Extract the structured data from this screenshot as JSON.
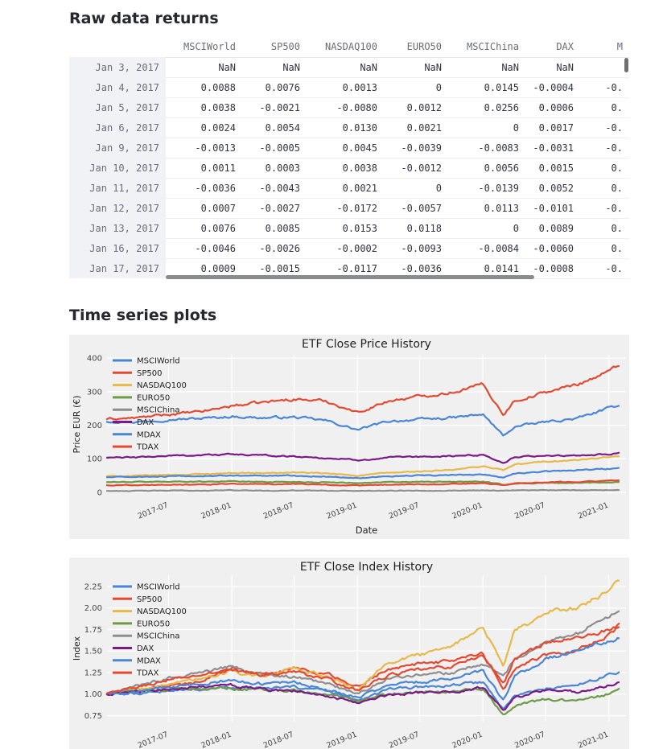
{
  "sections": {
    "raw_title": "Raw data returns",
    "plots_title": "Time series plots"
  },
  "table": {
    "columns": [
      "MSCIWorld",
      "SP500",
      "NASDAQ100",
      "EURO50",
      "MSCIChina",
      "DAX",
      "M"
    ],
    "rows": [
      {
        "date": "Jan 3, 2017",
        "values": [
          "NaN",
          "NaN",
          "NaN",
          "NaN",
          "NaN",
          "NaN",
          ""
        ]
      },
      {
        "date": "Jan 4, 2017",
        "values": [
          "0.0088",
          "0.0076",
          "0.0013",
          "0",
          "0.0145",
          "-0.0004",
          "-0."
        ]
      },
      {
        "date": "Jan 5, 2017",
        "values": [
          "0.0038",
          "-0.0021",
          "-0.0080",
          "0.0012",
          "0.0256",
          "0.0006",
          "0."
        ]
      },
      {
        "date": "Jan 6, 2017",
        "values": [
          "0.0024",
          "0.0054",
          "0.0130",
          "0.0021",
          "0",
          "0.0017",
          "-0."
        ]
      },
      {
        "date": "Jan 9, 2017",
        "values": [
          "-0.0013",
          "-0.0005",
          "0.0045",
          "-0.0039",
          "-0.0083",
          "-0.0031",
          "-0."
        ]
      },
      {
        "date": "Jan 10, 2017",
        "values": [
          "0.0011",
          "0.0003",
          "0.0038",
          "-0.0012",
          "0.0056",
          "0.0015",
          "0."
        ]
      },
      {
        "date": "Jan 11, 2017",
        "values": [
          "-0.0036",
          "-0.0043",
          "0.0021",
          "0",
          "-0.0139",
          "0.0052",
          "0."
        ]
      },
      {
        "date": "Jan 12, 2017",
        "values": [
          "0.0007",
          "-0.0027",
          "-0.0172",
          "-0.0057",
          "0.0113",
          "-0.0101",
          "-0."
        ]
      },
      {
        "date": "Jan 13, 2017",
        "values": [
          "0.0076",
          "0.0085",
          "0.0153",
          "0.0118",
          "0",
          "0.0089",
          "0."
        ]
      },
      {
        "date": "Jan 16, 2017",
        "values": [
          "-0.0046",
          "-0.0026",
          "-0.0002",
          "-0.0093",
          "-0.0084",
          "-0.0060",
          "0."
        ]
      },
      {
        "date": "Jan 17, 2017",
        "values": [
          "0.0009",
          "-0.0015",
          "-0.0117",
          "-0.0036",
          "0.0141",
          "-0.0008",
          "-0."
        ]
      }
    ]
  },
  "chart_data": [
    {
      "type": "line",
      "title": "ETF Close Price History",
      "xlabel": "Date",
      "ylabel": "Price EUR (€)",
      "x_ticks": [
        "2017-07",
        "2018-01",
        "2018-07",
        "2019-01",
        "2019-07",
        "2020-01",
        "2020-07",
        "2021-01"
      ],
      "y_ticks": [
        0,
        100,
        200,
        300,
        400
      ],
      "ylim": [
        -5,
        410
      ],
      "xlim": [
        "2017-01-03",
        "2021-02-20"
      ],
      "grid": true,
      "legend": "top-left",
      "x": [
        "2017-01",
        "2017-04",
        "2017-07",
        "2017-10",
        "2018-01",
        "2018-04",
        "2018-07",
        "2018-10",
        "2019-01",
        "2019-04",
        "2019-07",
        "2019-10",
        "2020-01",
        "2020-03",
        "2020-04",
        "2020-07",
        "2020-10",
        "2021-01",
        "2021-02"
      ],
      "series": [
        {
          "name": "MSCIWorld",
          "color": "#4a86d4",
          "values": [
            212,
            210,
            217,
            220,
            226,
            222,
            224,
            214,
            186,
            212,
            217,
            222,
            232,
            168,
            195,
            210,
            220,
            250,
            262
          ]
        },
        {
          "name": "SP500",
          "color": "#e24a33",
          "values": [
            218,
            222,
            232,
            240,
            258,
            268,
            278,
            272,
            238,
            272,
            286,
            298,
            322,
            232,
            272,
            298,
            322,
            360,
            382
          ]
        },
        {
          "name": "NASDAQ100",
          "color": "#e8b94a",
          "values": [
            48,
            49,
            52,
            54,
            58,
            57,
            59,
            56,
            50,
            58,
            62,
            66,
            78,
            66,
            82,
            92,
            96,
            104,
            106
          ]
        },
        {
          "name": "EURO50",
          "color": "#6e9b47",
          "values": [
            30,
            31,
            32,
            32,
            33,
            31,
            31,
            30,
            28,
            30,
            31,
            31,
            32,
            22,
            26,
            28,
            28,
            30,
            31
          ]
        },
        {
          "name": "MSCIChina",
          "color": "#8e8e8e",
          "values": [
            4,
            4,
            5,
            5,
            6,
            5,
            5,
            5,
            4,
            5,
            5,
            5,
            6,
            5,
            6,
            6,
            6,
            7,
            7
          ]
        },
        {
          "name": "DAX",
          "color": "#7b1a87",
          "values": [
            103,
            104,
            109,
            111,
            113,
            110,
            107,
            102,
            96,
            103,
            105,
            108,
            112,
            88,
            104,
            110,
            108,
            114,
            116
          ]
        },
        {
          "name": "MDAX",
          "color": "#4a86d4",
          "values": [
            45,
            46,
            47,
            48,
            50,
            49,
            50,
            47,
            43,
            48,
            50,
            51,
            54,
            44,
            55,
            62,
            66,
            70,
            72
          ]
        },
        {
          "name": "TDAX",
          "color": "#e24a33",
          "values": [
            21,
            22,
            23,
            24,
            25,
            24,
            25,
            23,
            20,
            23,
            24,
            25,
            27,
            22,
            27,
            30,
            32,
            34,
            35
          ]
        }
      ]
    },
    {
      "type": "line",
      "title": "ETF Close Index History",
      "xlabel": "",
      "ylabel": "Index",
      "x_ticks": [
        "2017-07",
        "2018-01",
        "2018-07",
        "2019-01",
        "2019-07",
        "2020-01",
        "2020-07",
        "2021-01"
      ],
      "y_ticks": [
        "0.75",
        "1.00",
        "1.25",
        "1.50",
        "1.75",
        "2.00",
        "2.25"
      ],
      "ylim": [
        0.68,
        2.38
      ],
      "xlim": [
        "2017-01-03",
        "2021-02-20"
      ],
      "grid": true,
      "legend": "top-left",
      "x": [
        "2017-01",
        "2017-04",
        "2017-07",
        "2017-10",
        "2018-01",
        "2018-04",
        "2018-07",
        "2018-10",
        "2019-01",
        "2019-04",
        "2019-07",
        "2019-10",
        "2020-01",
        "2020-03",
        "2020-04",
        "2020-07",
        "2020-10",
        "2021-01",
        "2021-02"
      ],
      "series": [
        {
          "name": "MSCIWorld",
          "color": "#4a86d4",
          "values": [
            1.0,
            1.01,
            1.04,
            1.06,
            1.08,
            1.06,
            1.08,
            1.04,
            0.92,
            1.05,
            1.08,
            1.1,
            1.14,
            0.82,
            0.98,
            1.06,
            1.1,
            1.22,
            1.26
          ]
        },
        {
          "name": "SP500",
          "color": "#e24a33",
          "values": [
            1.0,
            1.03,
            1.1,
            1.15,
            1.3,
            1.22,
            1.3,
            1.24,
            1.08,
            1.3,
            1.35,
            1.38,
            1.48,
            1.05,
            1.3,
            1.45,
            1.5,
            1.7,
            1.78
          ]
        },
        {
          "name": "NASDAQ100",
          "color": "#e8b94a",
          "values": [
            1.0,
            1.06,
            1.12,
            1.18,
            1.26,
            1.2,
            1.3,
            1.22,
            1.05,
            1.38,
            1.45,
            1.55,
            1.78,
            1.3,
            1.72,
            1.95,
            2.0,
            2.2,
            2.32
          ]
        },
        {
          "name": "EURO50",
          "color": "#6e9b47",
          "values": [
            1.0,
            1.03,
            1.05,
            1.06,
            1.07,
            1.04,
            1.04,
            1.0,
            0.92,
            1.0,
            1.02,
            1.03,
            1.06,
            0.76,
            0.86,
            0.94,
            0.92,
            1.0,
            1.05
          ]
        },
        {
          "name": "MSCIChina",
          "color": "#8e8e8e",
          "values": [
            1.0,
            1.1,
            1.18,
            1.25,
            1.32,
            1.22,
            1.2,
            1.12,
            1.0,
            1.18,
            1.22,
            1.25,
            1.35,
            1.2,
            1.4,
            1.6,
            1.7,
            1.9,
            1.95
          ]
        },
        {
          "name": "DAX",
          "color": "#7b1a87",
          "values": [
            1.0,
            1.02,
            1.06,
            1.08,
            1.1,
            1.05,
            1.04,
            0.98,
            0.9,
            0.99,
            1.01,
            1.03,
            1.08,
            0.8,
            0.96,
            1.04,
            1.02,
            1.1,
            1.14
          ]
        },
        {
          "name": "MDAX",
          "color": "#4a86d4",
          "values": [
            1.0,
            1.03,
            1.08,
            1.12,
            1.16,
            1.12,
            1.14,
            1.06,
            0.96,
            1.1,
            1.14,
            1.18,
            1.26,
            0.92,
            1.2,
            1.4,
            1.5,
            1.62,
            1.66
          ]
        },
        {
          "name": "TDAX",
          "color": "#e24a33",
          "values": [
            1.0,
            1.08,
            1.16,
            1.22,
            1.28,
            1.22,
            1.26,
            1.18,
            1.04,
            1.22,
            1.28,
            1.32,
            1.45,
            1.12,
            1.4,
            1.6,
            1.65,
            1.75,
            1.8
          ]
        }
      ]
    }
  ]
}
